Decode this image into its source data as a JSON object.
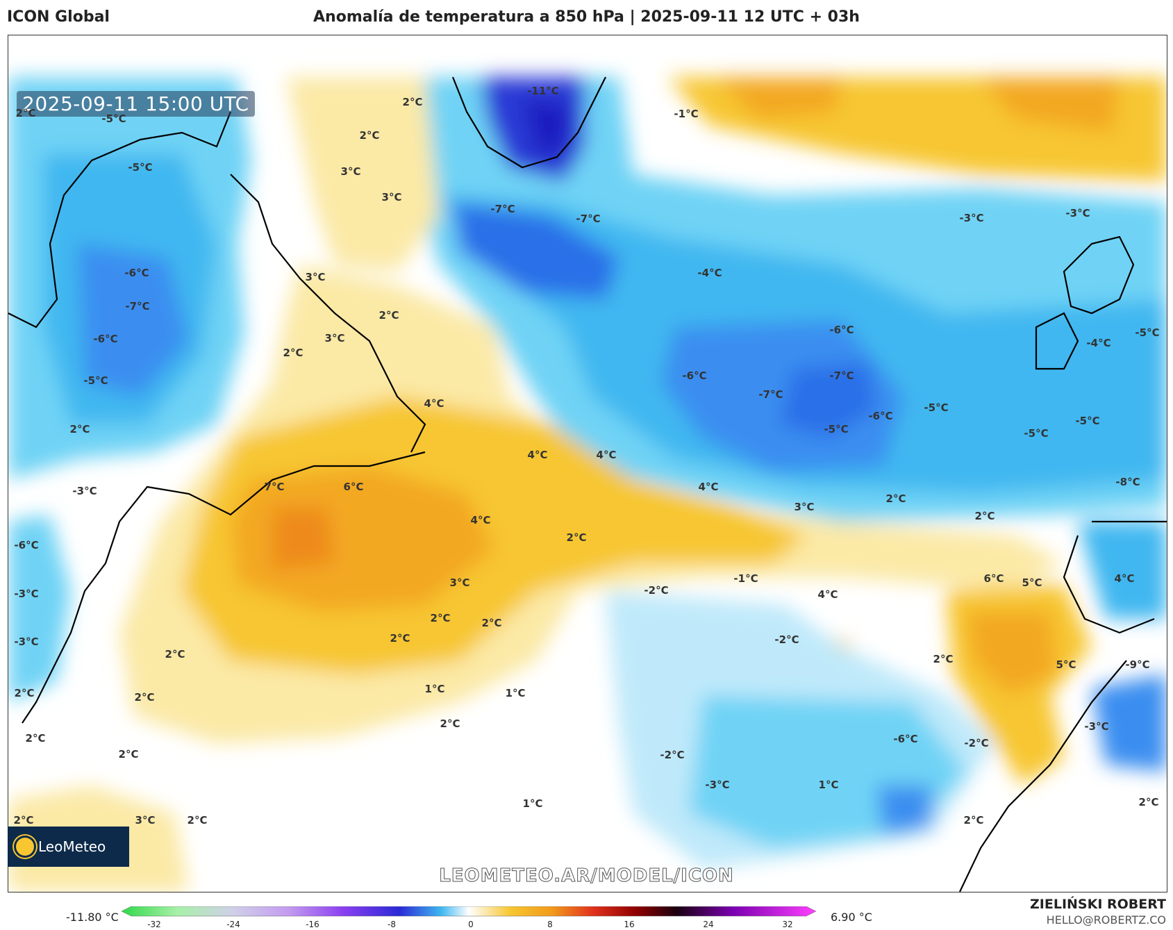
{
  "header": {
    "model": "ICON Global",
    "title": "Anomalía de temperatura a 850 hPa | 2025-09-11 12 UTC + 03h"
  },
  "map": {
    "timestamp": "2025-09-11 15:00 UTC",
    "labels": [
      "2°C",
      "-5°C",
      "-5°C",
      "-6°C",
      "-7°C",
      "-6°C",
      "-5°C",
      "2°C",
      "2°C",
      "3°C",
      "3°C",
      "-11°C",
      "-1°C",
      "-7°C",
      "-7°C",
      "-3°C",
      "-3°C",
      "-4°C",
      "-6°C",
      "-6°C",
      "-7°C",
      "-7°C",
      "-6°C",
      "-5°C",
      "-5°C",
      "-5°C",
      "-5°C",
      "-4°C",
      "-5°C",
      "3°C",
      "2°C",
      "3°C",
      "2°C",
      "4°C",
      "2°C",
      "7°C",
      "6°C",
      "4°C",
      "4°C",
      "4°C",
      "4°C",
      "3°C",
      "2°C",
      "2°C",
      "-8°C",
      "2°C",
      "-3°C",
      "-6°C",
      "-3°C",
      "-3°C",
      "2°C",
      "3°C",
      "2°C",
      "2°C",
      "2°C",
      "2°C",
      "2°C",
      "2°C",
      "1°C",
      "1°C",
      "2°C",
      "-2°C",
      "-1°C",
      "4°C",
      "6°C",
      "5°C",
      "4°C",
      "-2°C",
      "5°C",
      "-9°C",
      "-6°C",
      "-2°C",
      "-3°C",
      "-2°C",
      "-3°C",
      "1°C",
      "1°C",
      "2°C",
      "2°C",
      "2°C",
      "3°C",
      "2°C",
      "2°C",
      "2°C"
    ],
    "palette": {
      "warm": "#f7c631",
      "hot": "#f29a1c",
      "cold": "#40c4f0",
      "very_cold": "#1f5fe0",
      "deep_cold": "#1a2ad0"
    }
  },
  "branding": {
    "logo": "LeoMeteo",
    "watermark": "LEOMETEO.AR/MODEL/ICON",
    "author": "ZIELIŃSKI ROBERT",
    "email": "HELLO@ROBERTZ.CO"
  },
  "colorbar": {
    "min_label": "-11.80 °C",
    "max_label": "6.90 °C",
    "ticks": [
      "-32",
      "-24",
      "-16",
      "-8",
      "0",
      "8",
      "16",
      "24",
      "32"
    ]
  }
}
